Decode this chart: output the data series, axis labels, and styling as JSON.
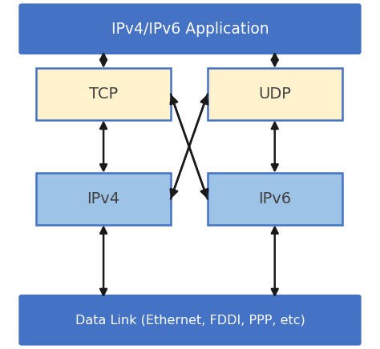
{
  "background_color": "#ffffff",
  "top_bar_color": "#4472C4",
  "bottom_bar_color": "#4472C4",
  "top_bar_text": "IPv4/IPv6 Application",
  "bottom_bar_text": "Data Link (Ethernet, FDDI, PPP, etc)",
  "tcp_box_color": "#FFF2CC",
  "tcp_box_edge": "#4472C4",
  "tcp_label": "TCP",
  "udp_box_color": "#FFF2CC",
  "udp_box_edge": "#4472C4",
  "udp_label": "UDP",
  "ipv4_box_color": "#9DC3E6",
  "ipv4_box_edge": "#4472C4",
  "ipv4_label": "IPv4",
  "ipv6_box_color": "#9DC3E6",
  "ipv6_box_edge": "#4472C4",
  "ipv6_label": "IPv6",
  "bar_text_color": "#ffffff",
  "box_text_color": "#404040",
  "arrow_color": "#1a1a1a",
  "figsize": [
    4.74,
    4.36
  ],
  "dpi": 100
}
